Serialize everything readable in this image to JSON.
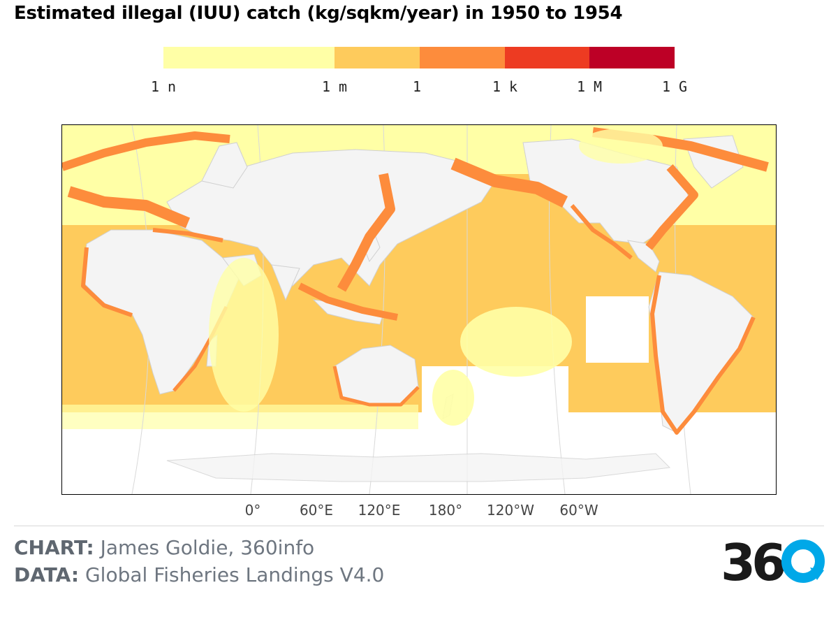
{
  "title": "Estimated illegal (IUU) catch (kg/sqkm/year) in 1950 to 1954",
  "legend": {
    "segments": [
      {
        "from": "1 n",
        "to": "1 m",
        "color": "#ffffa6"
      },
      {
        "from": "1 m",
        "to": "1",
        "color": "#fecb5c"
      },
      {
        "from": "1",
        "to": "1 k",
        "color": "#fd8c3c"
      },
      {
        "from": "1 k",
        "to": "1 M",
        "color": "#ed3b22"
      },
      {
        "from": "1 M",
        "to": "1 G",
        "color": "#bd0026"
      }
    ],
    "ticks": [
      "1 n",
      "1 m",
      "1",
      "1 k",
      "1 M",
      "1 G"
    ]
  },
  "map": {
    "land_color": "#f4f4f4",
    "border_color": "#d0d0d0",
    "x_ticks": [
      "0°",
      "60°E",
      "120°E",
      "180°",
      "120°W",
      "60°W"
    ]
  },
  "credits": {
    "chart_key": "CHART:",
    "chart_value": "James Goldie, 360info",
    "data_key": "DATA:",
    "data_value": "Global Fisheries Landings V4.0"
  },
  "logo": {
    "text": "360",
    "primary_color": "#1a1a1a",
    "accent_color": "#00a8e8"
  }
}
